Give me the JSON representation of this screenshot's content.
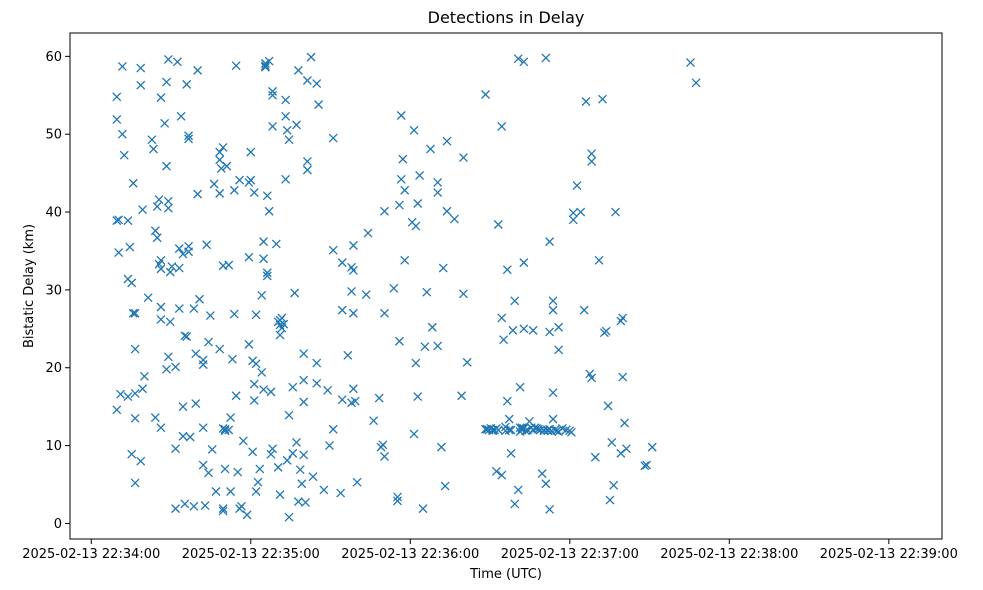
{
  "chart_data": {
    "type": "scatter",
    "title": "Detections in Delay",
    "xlabel": "Time (UTC)",
    "ylabel": "Bistatic Delay (km)",
    "marker": "x",
    "color": "#1f77b4",
    "x_unit": "seconds since 2025-02-13 22:34:00",
    "xlim": [
      -8,
      320
    ],
    "ylim": [
      -2,
      63
    ],
    "xticks": [
      {
        "value": 0,
        "label": "2025-02-13 22:34:00"
      },
      {
        "value": 60,
        "label": "2025-02-13 22:35:00"
      },
      {
        "value": 120,
        "label": "2025-02-13 22:36:00"
      },
      {
        "value": 180,
        "label": "2025-02-13 22:37:00"
      },
      {
        "value": 240,
        "label": "2025-02-13 22:38:00"
      },
      {
        "value": 300,
        "label": "2025-02-13 22:39:00"
      }
    ],
    "yticks": [
      {
        "value": 0,
        "label": "0"
      },
      {
        "value": 10,
        "label": "10"
      },
      {
        "value": 20,
        "label": "20"
      },
      {
        "value": 30,
        "label": "30"
      },
      {
        "value": 40,
        "label": "40"
      },
      {
        "value": 50,
        "label": "50"
      },
      {
        "value": 60,
        "label": "60"
      }
    ],
    "points": [
      [
        9.6,
        54.8
      ],
      [
        9.6,
        51.9
      ],
      [
        9.6,
        38.9
      ],
      [
        9.6,
        14.6
      ],
      [
        10.3,
        39.0
      ],
      [
        10.3,
        34.8
      ],
      [
        11.0,
        16.6
      ],
      [
        11.7,
        58.7
      ],
      [
        11.7,
        50.0
      ],
      [
        12.4,
        47.3
      ],
      [
        13.8,
        38.9
      ],
      [
        13.8,
        31.4
      ],
      [
        13.8,
        16.3
      ],
      [
        14.5,
        35.5
      ],
      [
        15.2,
        30.9
      ],
      [
        15.2,
        8.9
      ],
      [
        15.8,
        43.7
      ],
      [
        15.8,
        27.0
      ],
      [
        16.5,
        27.0
      ],
      [
        16.5,
        22.4
      ],
      [
        16.5,
        16.7
      ],
      [
        16.5,
        13.5
      ],
      [
        16.5,
        5.2
      ],
      [
        18.6,
        58.5
      ],
      [
        18.6,
        56.3
      ],
      [
        18.6,
        8.0
      ],
      [
        19.3,
        40.3
      ],
      [
        19.3,
        17.3
      ],
      [
        20.0,
        18.9
      ],
      [
        21.4,
        29.0
      ],
      [
        22.8,
        49.3
      ],
      [
        23.4,
        48.1
      ],
      [
        24.1,
        37.6
      ],
      [
        24.1,
        13.6
      ],
      [
        24.8,
        36.7
      ],
      [
        24.8,
        40.7
      ],
      [
        25.5,
        41.6
      ],
      [
        25.5,
        33.3
      ],
      [
        26.2,
        54.7
      ],
      [
        26.2,
        33.8
      ],
      [
        26.2,
        32.7
      ],
      [
        26.2,
        27.8
      ],
      [
        26.2,
        26.2
      ],
      [
        26.2,
        12.3
      ],
      [
        27.6,
        51.4
      ],
      [
        28.3,
        56.7
      ],
      [
        28.3,
        45.9
      ],
      [
        28.3,
        19.8
      ],
      [
        29.0,
        59.6
      ],
      [
        29.0,
        41.4
      ],
      [
        29.0,
        40.5
      ],
      [
        29.0,
        21.4
      ],
      [
        29.7,
        32.3
      ],
      [
        29.7,
        25.9
      ],
      [
        30.3,
        33.0
      ],
      [
        31.7,
        20.1
      ],
      [
        31.7,
        9.6
      ],
      [
        31.7,
        1.9
      ],
      [
        32.4,
        59.3
      ],
      [
        33.1,
        35.3
      ],
      [
        33.1,
        27.6
      ],
      [
        33.1,
        32.8
      ],
      [
        33.8,
        52.3
      ],
      [
        34.5,
        34.6
      ],
      [
        34.5,
        15.0
      ],
      [
        34.5,
        11.2
      ],
      [
        35.2,
        24.1
      ],
      [
        35.2,
        2.5
      ],
      [
        35.9,
        56.4
      ],
      [
        35.9,
        24.0
      ],
      [
        36.6,
        49.8
      ],
      [
        36.6,
        49.4
      ],
      [
        36.6,
        34.9
      ],
      [
        36.6,
        35.6
      ],
      [
        37.2,
        11.1
      ],
      [
        38.6,
        27.6
      ],
      [
        38.6,
        2.2
      ],
      [
        39.3,
        15.4
      ],
      [
        39.3,
        21.8
      ],
      [
        40.0,
        58.2
      ],
      [
        40.0,
        42.3
      ],
      [
        40.7,
        28.8
      ],
      [
        42.1,
        21.0
      ],
      [
        42.1,
        12.3
      ],
      [
        42.1,
        20.4
      ],
      [
        42.1,
        7.5
      ],
      [
        42.8,
        2.3
      ],
      [
        43.4,
        35.8
      ],
      [
        44.1,
        6.5
      ],
      [
        44.1,
        23.3
      ],
      [
        44.8,
        26.7
      ],
      [
        45.5,
        9.5
      ],
      [
        46.2,
        43.6
      ],
      [
        46.9,
        4.1
      ],
      [
        48.3,
        47.7
      ],
      [
        48.3,
        46.7
      ],
      [
        48.3,
        42.4
      ],
      [
        48.3,
        22.4
      ],
      [
        48.9,
        45.6
      ],
      [
        49.6,
        33.1
      ],
      [
        49.6,
        48.3
      ],
      [
        49.6,
        12.2
      ],
      [
        49.6,
        1.9
      ],
      [
        49.6,
        1.6
      ],
      [
        50.3,
        7.0
      ],
      [
        50.3,
        12.1
      ],
      [
        50.3,
        11.9
      ],
      [
        51.0,
        45.9
      ],
      [
        51.7,
        33.2
      ],
      [
        51.7,
        12.0
      ],
      [
        52.4,
        13.6
      ],
      [
        52.4,
        4.1
      ],
      [
        53.1,
        21.1
      ],
      [
        53.8,
        42.8
      ],
      [
        53.8,
        26.9
      ],
      [
        54.5,
        58.8
      ],
      [
        54.5,
        16.4
      ],
      [
        55.1,
        6.6
      ],
      [
        55.8,
        44.1
      ],
      [
        55.8,
        1.9
      ],
      [
        56.5,
        2.2
      ],
      [
        57.2,
        10.6
      ],
      [
        58.6,
        1.1
      ],
      [
        59.3,
        43.8
      ],
      [
        59.3,
        23.0
      ],
      [
        59.3,
        34.2
      ],
      [
        60.0,
        47.7
      ],
      [
        60.0,
        44.1
      ],
      [
        60.7,
        9.2
      ],
      [
        60.7,
        20.9
      ],
      [
        61.3,
        42.5
      ],
      [
        61.3,
        17.9
      ],
      [
        61.3,
        15.8
      ],
      [
        62.0,
        20.5
      ],
      [
        62.0,
        26.8
      ],
      [
        62.0,
        4.1
      ],
      [
        62.7,
        5.3
      ],
      [
        63.4,
        7.0
      ],
      [
        64.1,
        29.3
      ],
      [
        64.1,
        19.4
      ],
      [
        64.8,
        36.2
      ],
      [
        64.8,
        34.0
      ],
      [
        64.8,
        17.2
      ],
      [
        65.5,
        59.1
      ],
      [
        65.5,
        58.8
      ],
      [
        65.5,
        58.6
      ],
      [
        66.2,
        42.1
      ],
      [
        66.2,
        32.2
      ],
      [
        66.2,
        31.8
      ],
      [
        66.9,
        59.4
      ],
      [
        66.9,
        40.1
      ],
      [
        67.6,
        16.9
      ],
      [
        67.6,
        8.9
      ],
      [
        68.2,
        55.5
      ],
      [
        68.2,
        55.0
      ],
      [
        68.2,
        51.0
      ],
      [
        68.2,
        9.6
      ],
      [
        69.6,
        35.9
      ],
      [
        70.3,
        7.2
      ],
      [
        70.3,
        25.9
      ],
      [
        71.0,
        3.7
      ],
      [
        71.0,
        25.5
      ],
      [
        71.0,
        24.2
      ],
      [
        71.0,
        26.1
      ],
      [
        71.7,
        26.4
      ],
      [
        71.7,
        25.1
      ],
      [
        72.4,
        25.6
      ],
      [
        73.1,
        54.4
      ],
      [
        73.1,
        52.3
      ],
      [
        73.1,
        44.2
      ],
      [
        73.7,
        50.5
      ],
      [
        73.7,
        8.1
      ],
      [
        74.4,
        49.3
      ],
      [
        74.4,
        13.9
      ],
      [
        74.4,
        0.8
      ],
      [
        75.8,
        17.5
      ],
      [
        75.8,
        9.0
      ],
      [
        76.5,
        29.6
      ],
      [
        77.2,
        51.2
      ],
      [
        77.2,
        10.4
      ],
      [
        77.9,
        58.2
      ],
      [
        77.9,
        2.8
      ],
      [
        78.6,
        6.9
      ],
      [
        79.2,
        5.1
      ],
      [
        79.9,
        21.8
      ],
      [
        79.9,
        18.4
      ],
      [
        79.9,
        15.6
      ],
      [
        79.9,
        8.8
      ],
      [
        80.6,
        2.7
      ],
      [
        81.3,
        56.9
      ],
      [
        81.3,
        46.5
      ],
      [
        81.3,
        45.4
      ],
      [
        82.7,
        59.9
      ],
      [
        83.4,
        6.0
      ],
      [
        84.8,
        56.5
      ],
      [
        84.8,
        18.0
      ],
      [
        84.8,
        20.6
      ],
      [
        85.5,
        53.8
      ],
      [
        87.5,
        4.3
      ],
      [
        88.9,
        17.1
      ],
      [
        89.6,
        10.0
      ],
      [
        91.0,
        49.5
      ],
      [
        91.0,
        12.1
      ],
      [
        91.0,
        35.1
      ],
      [
        93.8,
        3.9
      ],
      [
        94.4,
        15.9
      ],
      [
        94.4,
        27.4
      ],
      [
        94.4,
        33.5
      ],
      [
        96.5,
        21.6
      ],
      [
        97.9,
        15.5
      ],
      [
        97.9,
        29.8
      ],
      [
        97.9,
        32.9
      ],
      [
        98.6,
        35.7
      ],
      [
        98.6,
        32.5
      ],
      [
        98.6,
        27.0
      ],
      [
        98.6,
        17.3
      ],
      [
        99.3,
        15.7
      ],
      [
        100.0,
        5.3
      ],
      [
        103.4,
        29.4
      ],
      [
        104.1,
        37.3
      ],
      [
        106.2,
        13.2
      ],
      [
        108.3,
        16.1
      ],
      [
        109.0,
        9.8
      ],
      [
        110.3,
        8.6
      ],
      [
        110.3,
        27.0
      ],
      [
        110.3,
        40.1
      ],
      [
        109.7,
        10.1
      ],
      [
        113.8,
        30.2
      ],
      [
        115.2,
        3.4
      ],
      [
        115.2,
        2.9
      ],
      [
        115.9,
        23.4
      ],
      [
        115.9,
        40.9
      ],
      [
        116.6,
        52.4
      ],
      [
        116.6,
        44.2
      ],
      [
        117.2,
        46.8
      ],
      [
        117.9,
        42.8
      ],
      [
        117.9,
        33.8
      ],
      [
        120.7,
        38.7
      ],
      [
        121.4,
        50.5
      ],
      [
        121.4,
        11.5
      ],
      [
        122.1,
        38.2
      ],
      [
        122.1,
        20.6
      ],
      [
        122.8,
        41.1
      ],
      [
        122.8,
        16.3
      ],
      [
        123.5,
        44.7
      ],
      [
        124.8,
        1.9
      ],
      [
        125.5,
        22.7
      ],
      [
        126.2,
        29.7
      ],
      [
        127.6,
        48.1
      ],
      [
        128.3,
        25.2
      ],
      [
        130.3,
        43.8
      ],
      [
        130.3,
        42.5
      ],
      [
        130.3,
        22.8
      ],
      [
        131.7,
        9.8
      ],
      [
        132.4,
        32.8
      ],
      [
        133.1,
        4.8
      ],
      [
        133.8,
        49.1
      ],
      [
        133.8,
        40.1
      ],
      [
        136.6,
        39.1
      ],
      [
        139.3,
        16.4
      ],
      [
        140.0,
        29.5
      ],
      [
        140.0,
        47.0
      ],
      [
        141.4,
        20.7
      ],
      [
        148.3,
        55.1
      ],
      [
        148.3,
        12.1
      ],
      [
        148.9,
        12.1
      ],
      [
        149.6,
        12.0
      ],
      [
        150.3,
        12.2
      ],
      [
        151.0,
        12.0
      ],
      [
        151.0,
        11.9
      ],
      [
        151.7,
        12.0
      ],
      [
        152.4,
        6.7
      ],
      [
        152.4,
        12.2
      ],
      [
        153.1,
        12.0
      ],
      [
        153.1,
        38.4
      ],
      [
        154.4,
        51.0
      ],
      [
        154.4,
        26.4
      ],
      [
        154.4,
        6.2
      ],
      [
        155.1,
        23.6
      ],
      [
        155.8,
        11.9
      ],
      [
        155.8,
        12.4
      ],
      [
        156.5,
        32.6
      ],
      [
        156.5,
        15.7
      ],
      [
        157.2,
        13.4
      ],
      [
        157.2,
        12.0
      ],
      [
        157.9,
        12.0
      ],
      [
        157.9,
        9.0
      ],
      [
        158.6,
        24.8
      ],
      [
        159.3,
        28.6
      ],
      [
        159.3,
        2.5
      ],
      [
        160.6,
        59.7
      ],
      [
        160.6,
        4.3
      ],
      [
        161.3,
        17.5
      ],
      [
        161.3,
        12.3
      ],
      [
        161.3,
        11.8
      ],
      [
        162.0,
        12.0
      ],
      [
        162.0,
        12.3
      ],
      [
        162.0,
        12.1
      ],
      [
        162.7,
        59.3
      ],
      [
        162.7,
        33.5
      ],
      [
        162.7,
        25.0
      ],
      [
        162.7,
        12.2
      ],
      [
        163.4,
        11.9
      ],
      [
        164.1,
        12.0
      ],
      [
        164.8,
        13.1
      ],
      [
        165.5,
        12.3
      ],
      [
        166.2,
        12.0
      ],
      [
        166.2,
        24.8
      ],
      [
        166.9,
        12.3
      ],
      [
        167.5,
        12.2
      ],
      [
        168.2,
        12.1
      ],
      [
        168.9,
        12.0
      ],
      [
        169.6,
        6.4
      ],
      [
        170.3,
        12.0
      ],
      [
        170.3,
        11.9
      ],
      [
        171.0,
        59.8
      ],
      [
        171.0,
        5.1
      ],
      [
        171.7,
        12.0
      ],
      [
        171.7,
        11.9
      ],
      [
        172.4,
        1.8
      ],
      [
        172.4,
        36.2
      ],
      [
        172.4,
        24.6
      ],
      [
        172.4,
        12.1
      ],
      [
        173.1,
        11.9
      ],
      [
        173.7,
        16.8
      ],
      [
        173.7,
        13.4
      ],
      [
        173.7,
        27.4
      ],
      [
        173.7,
        28.6
      ],
      [
        174.4,
        12.0
      ],
      [
        175.1,
        11.9
      ],
      [
        175.8,
        22.3
      ],
      [
        175.8,
        25.2
      ],
      [
        175.8,
        11.8
      ],
      [
        177.2,
        12.2
      ],
      [
        178.6,
        12.0
      ],
      [
        179.9,
        11.9
      ],
      [
        180.6,
        11.7
      ],
      [
        181.3,
        39.9
      ],
      [
        181.3,
        39.0
      ],
      [
        182.7,
        43.4
      ],
      [
        184.1,
        40.0
      ],
      [
        185.4,
        27.4
      ],
      [
        186.1,
        54.2
      ],
      [
        187.5,
        19.2
      ],
      [
        188.2,
        18.7
      ],
      [
        188.2,
        47.5
      ],
      [
        188.2,
        46.5
      ],
      [
        189.6,
        8.5
      ],
      [
        191.0,
        33.8
      ],
      [
        192.3,
        54.5
      ],
      [
        193.0,
        24.5
      ],
      [
        193.7,
        24.7
      ],
      [
        194.4,
        15.1
      ],
      [
        195.1,
        3.0
      ],
      [
        195.8,
        10.4
      ],
      [
        196.5,
        4.9
      ],
      [
        197.2,
        40.0
      ],
      [
        199.2,
        26.0
      ],
      [
        199.2,
        9.0
      ],
      [
        199.9,
        26.4
      ],
      [
        199.9,
        18.8
      ],
      [
        200.6,
        12.9
      ],
      [
        201.3,
        9.6
      ],
      [
        208.2,
        7.4
      ],
      [
        208.9,
        7.5
      ],
      [
        211.0,
        9.8
      ],
      [
        225.4,
        59.2
      ],
      [
        227.5,
        56.6
      ]
    ]
  }
}
